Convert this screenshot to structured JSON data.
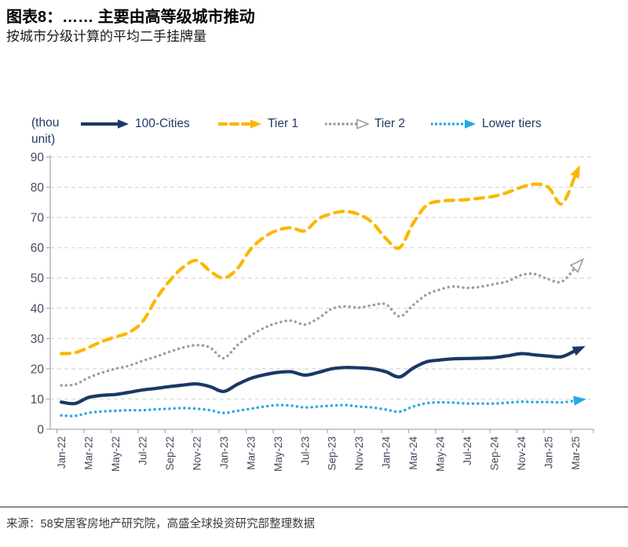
{
  "header": {
    "title": "图表8：…… 主要由高等级城市推动",
    "subtitle": "按城市分级计算的平均二手挂牌量"
  },
  "footer": {
    "source": "来源：58安居客房地产研究院，高盛全球投资研究部整理数据"
  },
  "chart_data": {
    "type": "line",
    "unit_label": "(thou unit)",
    "title": "按城市分级计算的平均二手挂牌量",
    "xlabel": "",
    "ylabel": "thou unit",
    "ylim": [
      0,
      90
    ],
    "ytick_step": 10,
    "grid": "horizontal-dashed",
    "legend_position": "top",
    "line_shape": "smooth-with-end-arrows",
    "x_tick_labels": [
      "Jan-22",
      "Mar-22",
      "May-22",
      "Jul-22",
      "Sep-22",
      "Nov-22",
      "Jan-23",
      "Mar-23",
      "May-23",
      "Jul-23",
      "Sep-23",
      "Nov-23",
      "Jan-24",
      "Mar-24",
      "May-24",
      "Jul-24",
      "Sep-24",
      "Nov-24",
      "Jan-25",
      "Mar-25"
    ],
    "categories": [
      "Jan-22",
      "Feb-22",
      "Mar-22",
      "Apr-22",
      "May-22",
      "Jun-22",
      "Jul-22",
      "Aug-22",
      "Sep-22",
      "Oct-22",
      "Nov-22",
      "Dec-22",
      "Jan-23",
      "Feb-23",
      "Mar-23",
      "Apr-23",
      "May-23",
      "Jun-23",
      "Jul-23",
      "Aug-23",
      "Sep-23",
      "Oct-23",
      "Nov-23",
      "Dec-23",
      "Jan-24",
      "Feb-24",
      "Mar-24",
      "Apr-24",
      "May-24",
      "Jun-24",
      "Jul-24",
      "Aug-24",
      "Sep-24",
      "Oct-24",
      "Nov-24",
      "Dec-24",
      "Jan-25",
      "Feb-25",
      "Mar-25"
    ],
    "series": [
      {
        "name": "Tier 2",
        "color": "#9c9c9c",
        "style": "dotted",
        "arrow": "open",
        "values": [
          14.5,
          14.8,
          17,
          18.7,
          20,
          21,
          22.6,
          24,
          25.6,
          27,
          27.8,
          27,
          23.5,
          27.7,
          31,
          33.5,
          35.2,
          35.9,
          34.6,
          36.7,
          39.8,
          40.6,
          40.2,
          41,
          41.3,
          37.3,
          41,
          44.5,
          46.2,
          47.2,
          46.7,
          47.1,
          48,
          48.9,
          51,
          51.3,
          49.6,
          48.8,
          53.5
        ]
      },
      {
        "name": "Lower tiers",
        "color": "#24a9e4",
        "style": "dotted",
        "arrow": "filled",
        "values": [
          4.6,
          4.4,
          5.4,
          5.9,
          6.1,
          6.3,
          6.3,
          6.6,
          6.8,
          7,
          6.8,
          6.3,
          5.4,
          6.1,
          6.8,
          7.5,
          8,
          7.8,
          7.2,
          7.5,
          7.8,
          8,
          7.5,
          7.2,
          6.5,
          5.8,
          7.5,
          8.6,
          8.9,
          8.8,
          8.5,
          8.5,
          8.5,
          8.8,
          9.1,
          9,
          9,
          8.9,
          9.5
        ]
      },
      {
        "name": "Tier 1",
        "color": "#fbb700",
        "style": "dashed",
        "arrow": "filled",
        "values": [
          25,
          25.3,
          27,
          29,
          30.5,
          32,
          35.5,
          43,
          49,
          53.5,
          55.8,
          52.3,
          50,
          53,
          59.5,
          63.5,
          65.8,
          66.6,
          65.6,
          69.5,
          71.3,
          72,
          71,
          68.3,
          63,
          60,
          68,
          74,
          75.4,
          75.7,
          75.9,
          76.4,
          77,
          78.3,
          80,
          81,
          80,
          74.5,
          84
        ]
      },
      {
        "name": "100-Cities",
        "color": "#1b3765",
        "style": "solid",
        "arrow": "filled",
        "values": [
          9,
          8.5,
          10.5,
          11.2,
          11.5,
          12.2,
          13,
          13.5,
          14.1,
          14.6,
          15,
          14.1,
          12.5,
          14.8,
          16.8,
          18,
          18.8,
          19,
          17.9,
          18.8,
          20,
          20.4,
          20.3,
          20,
          19,
          17.3,
          20.2,
          22.3,
          22.9,
          23.3,
          23.4,
          23.5,
          23.7,
          24.3,
          25,
          24.6,
          24.2,
          24,
          26
        ]
      }
    ],
    "legend_order": [
      3,
      2,
      0,
      1
    ]
  }
}
